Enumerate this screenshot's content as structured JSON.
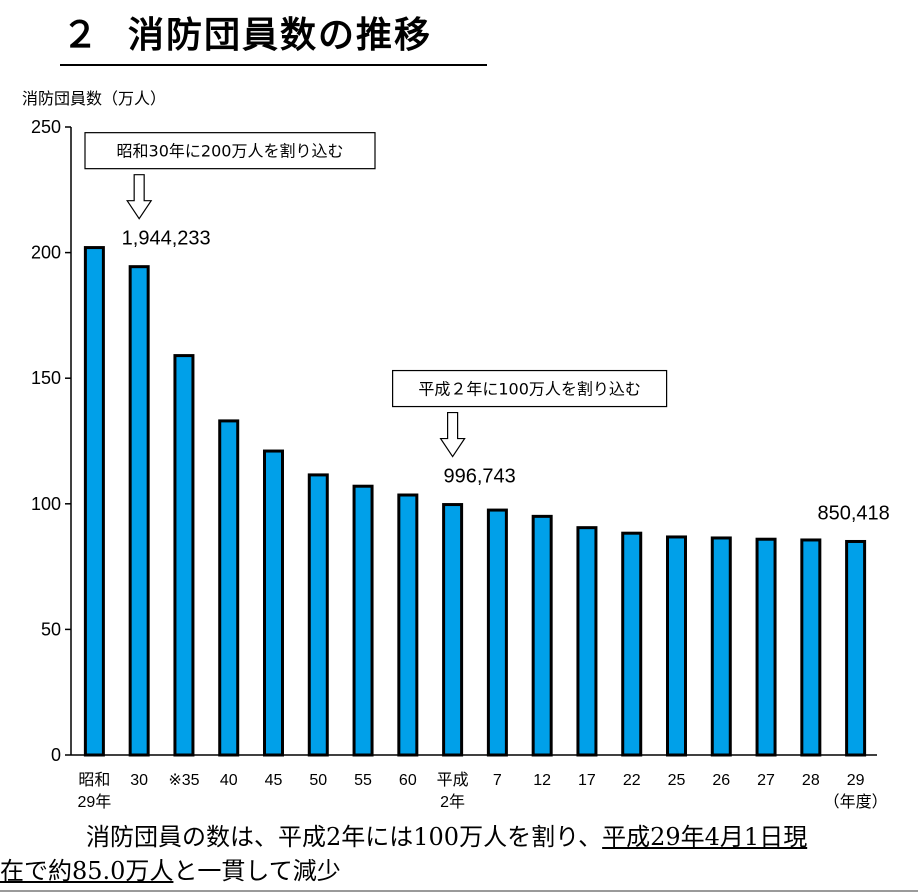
{
  "page": {
    "title_num": "２",
    "title_text": "消防団員数の推移"
  },
  "chart_data": {
    "type": "bar",
    "ylabel": "消防団員数（万人）",
    "ylim": [
      0,
      250
    ],
    "y_ticks": [
      "0",
      "50",
      "100",
      "150",
      "200",
      "250"
    ],
    "x_unit_label": "（年度）",
    "categories": [
      [
        "昭和",
        "29年"
      ],
      [
        "30"
      ],
      [
        "※35"
      ],
      [
        "40"
      ],
      [
        "45"
      ],
      [
        "50"
      ],
      [
        "55"
      ],
      [
        "60"
      ],
      [
        "平成",
        "2年"
      ],
      [
        "7"
      ],
      [
        "12"
      ],
      [
        "17"
      ],
      [
        "22"
      ],
      [
        "25"
      ],
      [
        "26"
      ],
      [
        "27"
      ],
      [
        "28"
      ],
      [
        "29"
      ]
    ],
    "values": [
      202,
      194.4,
      159,
      133,
      121,
      111.5,
      107,
      103.5,
      99.7,
      97.5,
      95,
      90.5,
      88.3,
      86.8,
      86.4,
      85.9,
      85.6,
      85.0
    ],
    "bar_color": "#00a0e9",
    "data_labels": [
      {
        "index": 1,
        "text": "1,944,233"
      },
      {
        "index": 8,
        "text": "996,743"
      },
      {
        "index": 17,
        "text": "850,418"
      }
    ],
    "callouts": [
      {
        "index": 1,
        "text": "昭和30年に200万人を割り込む"
      },
      {
        "index": 8,
        "text": "平成２年に100万人を割り込む"
      }
    ]
  },
  "summary": {
    "part1": "消防団員の数は、平成2年には100万人を割り、",
    "part2": "平成29年4月1日現",
    "part3": "在で約85.0万人",
    "part4": "と一貫して減少"
  }
}
